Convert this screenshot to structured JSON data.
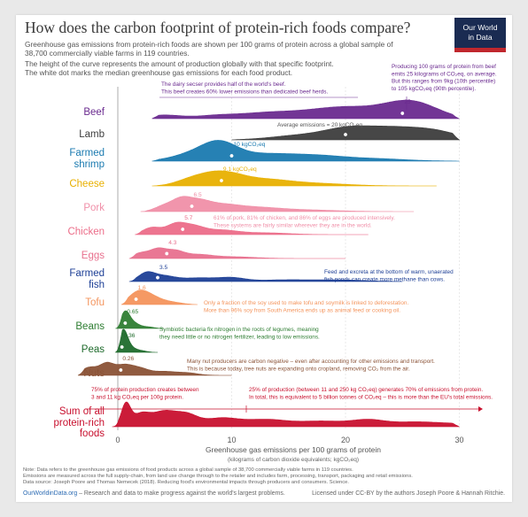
{
  "title": "How does the carbon footprint of protein-rich foods compare?",
  "subtitle_lines": [
    "Greenhouse gas emissions from protein-rich foods are shown per 100 grams of protein across a global sample of",
    "38,700 commercially viable farms in 119 countries.",
    "The height of the curve represents the amount of production globally with that specific footprint.",
    "The white dot marks the median greenhouse gas emissions for each food product."
  ],
  "logo": {
    "line1": "Our World",
    "line2": "in Data"
  },
  "colors": {
    "beef": "#6a2a8f",
    "lamb": "#3d3d3d",
    "shrimp": "#1a7ab0",
    "cheese": "#e8b000",
    "pork": "#f08fa8",
    "chicken": "#ec6d89",
    "eggs": "#e8708e",
    "fish": "#1d3f96",
    "tofu": "#f4945c",
    "beans": "#2e7d32",
    "peas": "#1f6b2c",
    "nuts": "#8a5236",
    "sum": "#c8102e"
  },
  "chart_data": {
    "type": "ridgeline",
    "xlabel": "Greenhouse gas emissions per 100 grams of protein",
    "xlabel_sub": "(kilograms of carbon dioxide equivalents; kgCO₂eq)",
    "xlim": [
      -4,
      30
    ],
    "xticks": [
      0,
      10,
      20,
      30
    ],
    "series": [
      {
        "name": "Beef",
        "median": 25,
        "median_label": "25"
      },
      {
        "name": "Lamb",
        "median": 20
      },
      {
        "name": "Farmed shrimp",
        "median": 10,
        "median_label": "10 kgCO₂eq"
      },
      {
        "name": "Cheese",
        "median": 9.1,
        "median_label": "9.1 kgCO₂eq"
      },
      {
        "name": "Pork",
        "median": 6.5,
        "median_label": "6.5"
      },
      {
        "name": "Chicken",
        "median": 5.7,
        "median_label": "5.7"
      },
      {
        "name": "Eggs",
        "median": 4.3,
        "median_label": "4.3"
      },
      {
        "name": "Farmed fish",
        "median": 3.5,
        "median_label": "3.5"
      },
      {
        "name": "Tofu",
        "median": 1.6,
        "median_label": "1.6"
      },
      {
        "name": "Beans",
        "median": 0.65,
        "median_label": "0.65"
      },
      {
        "name": "Peas",
        "median": 0.36,
        "median_label": "0.36"
      },
      {
        "name": "Nuts",
        "median": 0.26,
        "median_label": "0.26"
      },
      {
        "name": "Sum of all protein-rich foods",
        "median": null
      }
    ],
    "annotations": [
      {
        "id": "dairy",
        "lines": [
          "The dairy secser provides half of the world's beef.",
          "This beef creates 60% lower emissions than dedicated beef herds."
        ]
      },
      {
        "id": "beef",
        "lines": [
          "Producing 100 grams of protein from beef",
          "emits 25 kilograms of CO₂eq, on average.",
          "But this ranges from 9kg (10th percentile)",
          "to 105 kgCO₂eq (90th percentile)."
        ]
      },
      {
        "id": "lamb",
        "lines": [
          "Average emissions = 20 kgCO₂eq"
        ]
      },
      {
        "id": "pork",
        "lines": [
          "61% of pork, 81% of chicken, and 86% of eggs are produced intensively.",
          "These systems are fairly similar wherever they are in the world."
        ]
      },
      {
        "id": "fish",
        "lines": [
          "Feed and excreta at the bottom of warm, unaerated",
          "fish ponds can create more methane than cows."
        ]
      },
      {
        "id": "tofu",
        "lines": [
          "Only a fraction of the soy used to make tofu and soymilk is linked to deforestation.",
          "More than 96% soy from South America ends up as animal feed or cooking oil."
        ]
      },
      {
        "id": "beans",
        "lines": [
          "Symbiotic bacteria fix nitrogen in the roots of legumes, meaning",
          "they need little or no nitrogen fertilizer, leading to low emissions."
        ]
      },
      {
        "id": "nuts",
        "lines": [
          "Many nut producers are carbon negative – even after accounting for other emissions and transport.",
          "This is because today, tree nuts are expanding onto cropland, removing CO₂ from the air."
        ]
      },
      {
        "id": "sum-left",
        "lines": [
          "75% of protein production creates between",
          "3 and 11 kg CO₂eq per 100g protein."
        ]
      },
      {
        "id": "sum-right",
        "lines": [
          "25% of production (between 11 and 250 kg CO₂eq) generates 70% of emissions from protein.",
          "In total, this is equivalent to 5 billion tonnes of CO₂eq – this is more than the EU's total emissions."
        ]
      }
    ]
  },
  "footer": {
    "lines": [
      "Note: Data refers to the greenhouse gas emissions of food products across a global sample of 38,700 commercially viable farms in 119 countries.",
      "Emissions are measured across the full supply-chain, from land use change through to the retailer and includes farm, processing, transport, packaging and retail emissions.",
      "Data source: Joseph Poore and Thomas Nemecek (2018). Reducing food's environmental impacts through producers and consumers. Science."
    ],
    "site": "OurWorldinData.org",
    "site_tail": " – Research and data to make progress against the world's largest problems.",
    "license": "Licensed under CC-BY by the authors Joseph Poore & Hannah Ritchie."
  }
}
